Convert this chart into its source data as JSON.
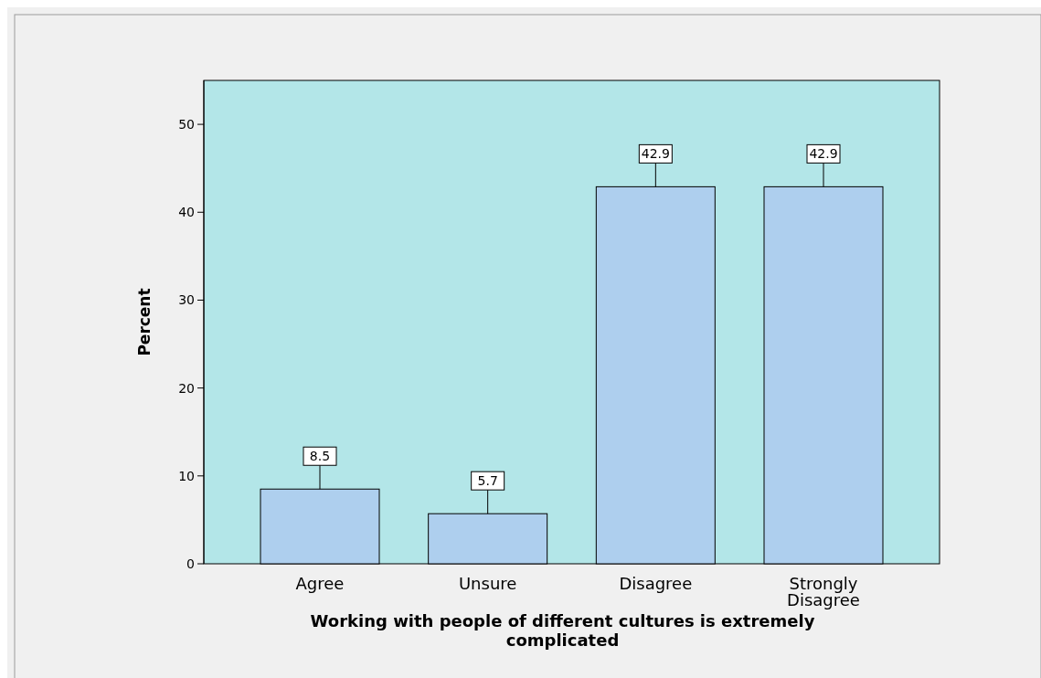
{
  "chart_data": {
    "type": "bar",
    "xlabel": "Working with people of different cultures is extremely complicated",
    "ylabel": "Percent",
    "categories": [
      "Agree",
      "Unsure",
      "Disagree",
      "Strongly Disagree"
    ],
    "values": [
      8.5,
      5.7,
      42.9,
      42.9
    ],
    "color": "#aecfee",
    "ylim": [
      0,
      55
    ],
    "yticks": [
      0,
      10,
      20,
      30,
      40,
      50
    ],
    "grid": false,
    "data_labels": true
  }
}
